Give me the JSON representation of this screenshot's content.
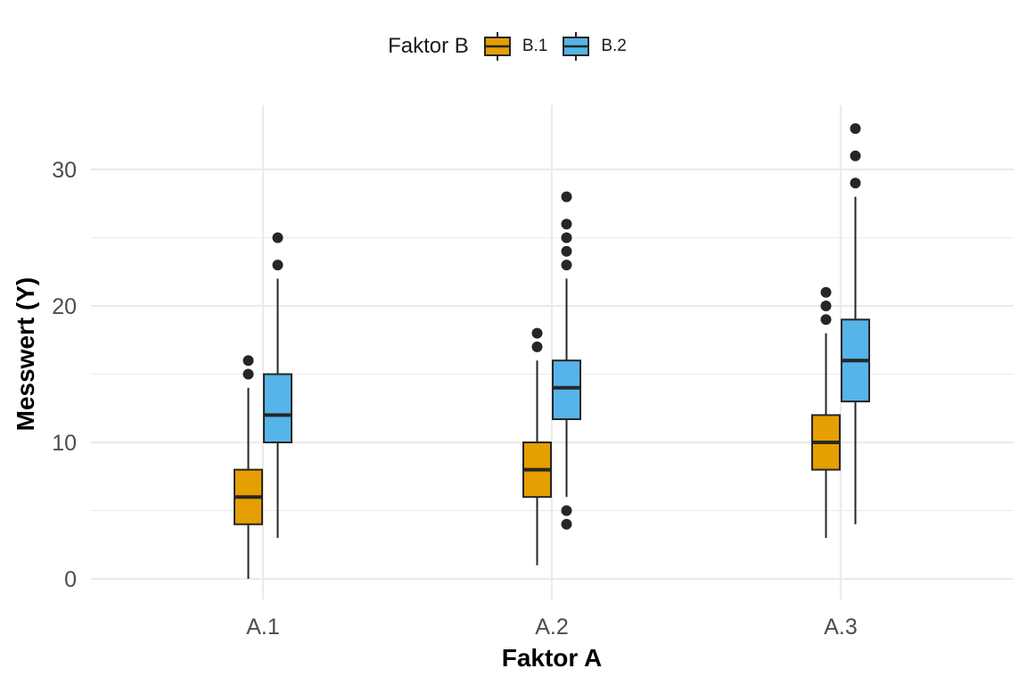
{
  "chart_data": {
    "type": "boxplot",
    "xlabel": "Faktor A",
    "ylabel": "Messwert (Y)",
    "categories": [
      "A.1",
      "A.2",
      "A.3"
    ],
    "ylim": [
      -1.5,
      34.8
    ],
    "yticks": [
      0,
      10,
      20,
      30
    ],
    "grid": true,
    "legend": {
      "title": "Faktor B",
      "position": "top"
    },
    "series": [
      {
        "name": "B.1",
        "color": "#E69F00",
        "boxes": [
          {
            "category": "A.1",
            "whisker_low": 0,
            "q1": 4,
            "median": 6,
            "q3": 8,
            "whisker_high": 14,
            "outliers": [
              15,
              16
            ]
          },
          {
            "category": "A.2",
            "whisker_low": 1,
            "q1": 6,
            "median": 8,
            "q3": 10,
            "whisker_high": 16,
            "outliers": [
              17,
              18
            ]
          },
          {
            "category": "A.3",
            "whisker_low": 3,
            "q1": 8,
            "median": 10,
            "q3": 12,
            "whisker_high": 18,
            "outliers": [
              19,
              20,
              21
            ]
          }
        ]
      },
      {
        "name": "B.2",
        "color": "#56B4E9",
        "boxes": [
          {
            "category": "A.1",
            "whisker_low": 3,
            "q1": 10,
            "median": 12,
            "q3": 15,
            "whisker_high": 22,
            "outliers": [
              23,
              25
            ]
          },
          {
            "category": "A.2",
            "whisker_low": 6,
            "q1": 11.7,
            "median": 14,
            "q3": 16,
            "whisker_high": 22,
            "outliers": [
              4,
              5,
              23,
              24,
              25,
              26,
              28
            ]
          },
          {
            "category": "A.3",
            "whisker_low": 4,
            "q1": 13,
            "median": 16,
            "q3": 19,
            "whisker_high": 28,
            "outliers": [
              29,
              31,
              33
            ]
          }
        ]
      }
    ]
  }
}
